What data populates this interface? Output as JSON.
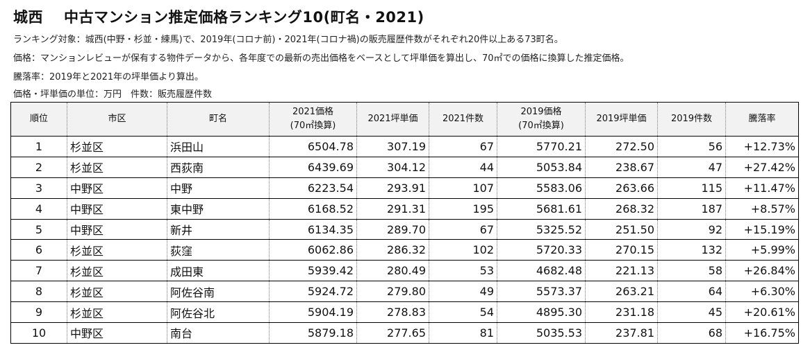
{
  "title": {
    "left": "城西",
    "right": "中古マンション推定価格ランキング10(町名・2021)"
  },
  "notes": [
    "ランキング対象：城西(中野・杉並・練馬)で、2019年(コロナ前)・2021年(コロナ禍)の販売履歴件数がそれぞれ20件以上ある73町名。",
    "価格：マンションレビューが保有する物件データから、各年度での最新の売出価格をベースとして坪単価を算出し、70㎡での価格に換算した推定価格。",
    "騰落率：2019年と2021年の坪単価より算出。",
    "価格・坪単価の単位：万円　件数：販売履歴件数"
  ],
  "table": {
    "headers": [
      {
        "line1": "順位",
        "line2": ""
      },
      {
        "line1": "市区",
        "line2": ""
      },
      {
        "line1": "町名",
        "line2": ""
      },
      {
        "line1": "2021価格",
        "line2": "(70㎡換算)"
      },
      {
        "line1": "2021坪単価",
        "line2": ""
      },
      {
        "line1": "2021件数",
        "line2": ""
      },
      {
        "line1": "2019価格",
        "line2": "(70㎡換算)"
      },
      {
        "line1": "2019坪単価",
        "line2": ""
      },
      {
        "line1": "2019件数",
        "line2": ""
      },
      {
        "line1": "騰落率",
        "line2": ""
      }
    ],
    "rows": [
      [
        "1",
        "杉並区",
        "浜田山",
        "6504.78",
        "307.19",
        "67",
        "5770.21",
        "272.50",
        "56",
        "+12.73%"
      ],
      [
        "2",
        "杉並区",
        "西荻南",
        "6439.69",
        "304.12",
        "44",
        "5053.84",
        "238.67",
        "47",
        "+27.42%"
      ],
      [
        "3",
        "中野区",
        "中野",
        "6223.54",
        "293.91",
        "107",
        "5583.06",
        "263.66",
        "115",
        "+11.47%"
      ],
      [
        "4",
        "中野区",
        "東中野",
        "6168.52",
        "291.31",
        "195",
        "5681.61",
        "268.32",
        "187",
        "+8.57%"
      ],
      [
        "5",
        "中野区",
        "新井",
        "6134.35",
        "289.70",
        "67",
        "5325.52",
        "251.50",
        "92",
        "+15.19%"
      ],
      [
        "6",
        "杉並区",
        "荻窪",
        "6062.86",
        "286.32",
        "102",
        "5720.33",
        "270.15",
        "132",
        "+5.99%"
      ],
      [
        "7",
        "杉並区",
        "成田東",
        "5939.42",
        "280.49",
        "53",
        "4682.48",
        "221.13",
        "58",
        "+26.84%"
      ],
      [
        "8",
        "杉並区",
        "阿佐谷南",
        "5924.72",
        "279.80",
        "49",
        "5573.37",
        "263.21",
        "64",
        "+6.30%"
      ],
      [
        "9",
        "杉並区",
        "阿佐谷北",
        "5904.19",
        "278.83",
        "54",
        "4895.30",
        "231.18",
        "45",
        "+20.61%"
      ],
      [
        "10",
        "中野区",
        "南台",
        "5879.18",
        "277.65",
        "81",
        "5035.53",
        "237.81",
        "68",
        "+16.75%"
      ]
    ]
  }
}
